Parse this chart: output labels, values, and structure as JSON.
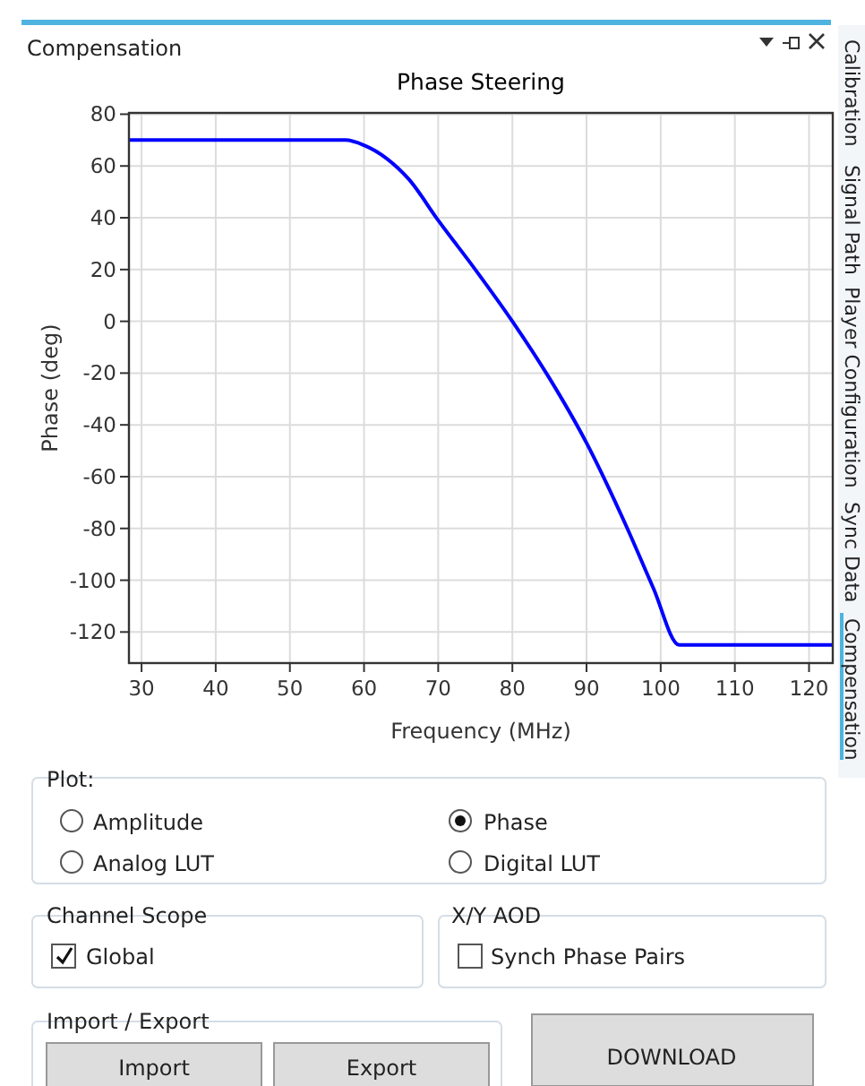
{
  "chart_data": [
    {
      "type": "line",
      "title": "Phase Steering",
      "xlabel": "Frequency (MHz)",
      "ylabel": "Phase (deg)",
      "x": [
        28.3,
        57.5,
        60,
        63,
        66,
        70,
        75,
        80,
        85,
        90,
        95.5,
        99,
        102.5,
        123.2
      ],
      "series": [
        {
          "color": "#0000ff",
          "values": [
            70,
            70,
            68,
            63,
            55,
            39,
            20,
            0,
            -22,
            -47,
            -80,
            -103,
            -125,
            -125
          ]
        }
      ],
      "xlim": [
        28.3,
        123.2
      ],
      "ylim": [
        -132,
        80.5
      ],
      "xticks": [
        30,
        40,
        50,
        60,
        70,
        80,
        90,
        100,
        110,
        120
      ],
      "yticks": [
        80,
        60,
        40,
        20,
        0,
        -20,
        -40,
        -60,
        -80,
        -100,
        -120
      ],
      "grid": true,
      "line_style": "solid",
      "marker": "none"
    },
    {
      "type": "other",
      "annotations": [
        "Compensation",
        "Calibration",
        "Signal Path",
        "Player Configuration",
        "Sync Data",
        "Compensation",
        "Plot:",
        "Amplitude",
        "Phase",
        "Analog LUT",
        "Digital LUT",
        "Channel Scope",
        "Global",
        "X/Y AOD",
        "Synch Phase Pairs",
        "Import / Export",
        "Import",
        "Export",
        "DOWNLOAD"
      ]
    }
  ]
}
